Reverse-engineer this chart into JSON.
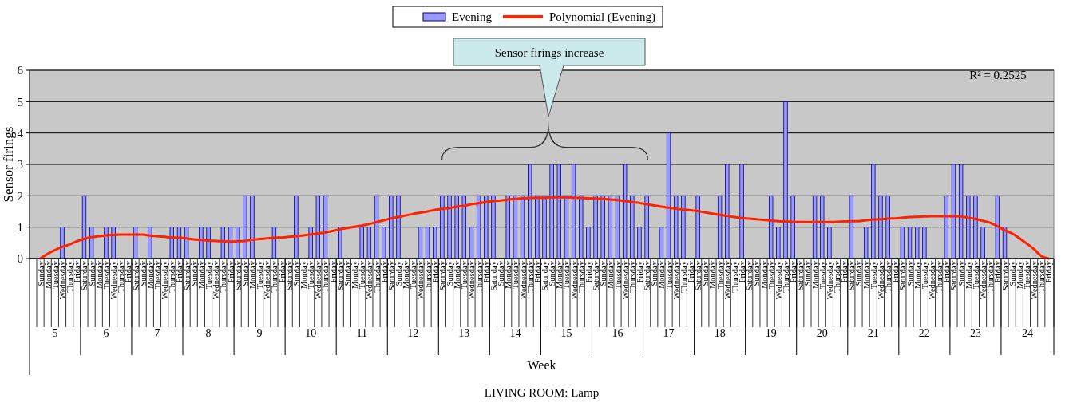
{
  "chart_data": {
    "type": "bar",
    "title": "LIVING ROOM: Lamp",
    "xlabel": "Week",
    "ylabel": "Sensor firings",
    "legend": "top",
    "grid": "y",
    "ylim": [
      0,
      6
    ],
    "yticks": [
      0,
      1,
      2,
      3,
      4,
      5,
      6
    ],
    "categories": [
      "Sunday",
      "Monday",
      "Tuesday",
      "Wednesday",
      "Thursday",
      "Friday",
      "Saturday",
      "Sunday",
      "Monday",
      "Tuesday",
      "Wednesday",
      "Thursday",
      "Friday",
      "Saturday",
      "Sunday",
      "Monday",
      "Tuesday",
      "Wednesday",
      "Thursday",
      "Friday",
      "Saturday",
      "Sunday",
      "Monday",
      "Tuesday",
      "Wednesday",
      "Thursday",
      "Friday",
      "Saturday",
      "Sunday",
      "Monday",
      "Tuesday",
      "Wednesday",
      "Thursday",
      "Friday",
      "Saturday",
      "Sunday",
      "Monday",
      "Tuesday",
      "Wednesday",
      "Thursday",
      "Friday",
      "Saturday",
      "Sunday",
      "Monday",
      "Tuesday",
      "Wednesday",
      "Thursday",
      "Friday",
      "Saturday",
      "Sunday",
      "Monday",
      "Tuesday",
      "Wednesday",
      "Thursday",
      "Friday",
      "Saturday",
      "Sunday",
      "Monday",
      "Tuesday",
      "Wednesday",
      "Thursday",
      "Friday",
      "Saturday",
      "Sunday",
      "Monday",
      "Tuesday",
      "Wednesday",
      "Thursday",
      "Friday",
      "Saturday",
      "Sunday",
      "Monday",
      "Tuesday",
      "Wednesday",
      "Thursday",
      "Friday",
      "Saturday",
      "Sunday",
      "Monday",
      "Tuesday",
      "Wednesday",
      "Thursday",
      "Friday",
      "Saturday",
      "Sunday",
      "Monday",
      "Tuesday",
      "Wednesday",
      "Thursday",
      "Friday",
      "Saturday",
      "Sunday",
      "Monday",
      "Tuesday",
      "Wednesday",
      "Thursday",
      "Friday",
      "Saturday",
      "Sunday",
      "Monday",
      "Tuesday",
      "Wednesday",
      "Thursday",
      "Friday",
      "Saturday",
      "Sunday",
      "Monday",
      "Tuesday",
      "Wednesday",
      "Thursday",
      "Friday",
      "Saturday",
      "Sunday",
      "Monday",
      "Tuesday",
      "Wednesday",
      "Thursday",
      "Friday",
      "Saturday",
      "Sunday",
      "Monday",
      "Tuesday",
      "Wednesday",
      "Thursday",
      "Friday",
      "Saturday",
      "Sunday",
      "Monday",
      "Tuesday",
      "Wednesday",
      "Thursday",
      "Friday",
      "Saturday",
      "Sunday",
      "Monday",
      "Tuesday",
      "Wednesday",
      "Thursday",
      "Friday"
    ],
    "series": [
      {
        "name": "Evening",
        "color": "#9999ff",
        "values": [
          0,
          0,
          0,
          1,
          0,
          0,
          2,
          1,
          0,
          1,
          1,
          0,
          0,
          1,
          0,
          1,
          0,
          0,
          1,
          1,
          1,
          0,
          1,
          1,
          0,
          1,
          1,
          1,
          2,
          2,
          0,
          0,
          1,
          0,
          0,
          2,
          0,
          1,
          2,
          2,
          0,
          1,
          0,
          0,
          1,
          1,
          2,
          1,
          2,
          2,
          0,
          0,
          1,
          1,
          1,
          2,
          2,
          2,
          2,
          1,
          2,
          2,
          2,
          0,
          2,
          2,
          2,
          3,
          2,
          2,
          3,
          3,
          2,
          3,
          2,
          1,
          2,
          2,
          2,
          2,
          3,
          2,
          1,
          2,
          0,
          1,
          4,
          2,
          2,
          0,
          2,
          0,
          0,
          2,
          3,
          0,
          3,
          0,
          0,
          0,
          2,
          1,
          5,
          2,
          0,
          0,
          2,
          2,
          1,
          0,
          0,
          2,
          0,
          1,
          3,
          2,
          2,
          0,
          1,
          1,
          1,
          1,
          0,
          0,
          2,
          3,
          3,
          2,
          2,
          1,
          0,
          2,
          1,
          0,
          0,
          0,
          0,
          0,
          0
        ]
      },
      {
        "name": "Polynomial (Evening)",
        "type": "line",
        "color": "#ff2200",
        "values": [
          0,
          0.15,
          0.27,
          0.37,
          0.45,
          0.55,
          0.63,
          0.68,
          0.71,
          0.74,
          0.75,
          0.76,
          0.76,
          0.76,
          0.76,
          0.73,
          0.71,
          0.69,
          0.67,
          0.66,
          0.64,
          0.61,
          0.59,
          0.57,
          0.56,
          0.55,
          0.54,
          0.55,
          0.56,
          0.6,
          0.62,
          0.64,
          0.66,
          0.67,
          0.69,
          0.71,
          0.74,
          0.77,
          0.8,
          0.83,
          0.88,
          0.93,
          0.97,
          1.01,
          1.05,
          1.1,
          1.16,
          1.22,
          1.28,
          1.33,
          1.37,
          1.42,
          1.46,
          1.5,
          1.55,
          1.58,
          1.61,
          1.65,
          1.68,
          1.73,
          1.76,
          1.8,
          1.83,
          1.85,
          1.88,
          1.9,
          1.92,
          1.93,
          1.94,
          1.94,
          1.95,
          1.95,
          1.95,
          1.94,
          1.93,
          1.92,
          1.91,
          1.9,
          1.88,
          1.86,
          1.83,
          1.8,
          1.77,
          1.73,
          1.69,
          1.65,
          1.62,
          1.59,
          1.56,
          1.54,
          1.51,
          1.47,
          1.43,
          1.39,
          1.36,
          1.32,
          1.29,
          1.27,
          1.25,
          1.23,
          1.21,
          1.19,
          1.18,
          1.17,
          1.16,
          1.16,
          1.16,
          1.16,
          1.16,
          1.17,
          1.18,
          1.19,
          1.19,
          1.22,
          1.24,
          1.25,
          1.27,
          1.28,
          1.3,
          1.32,
          1.33,
          1.34,
          1.35,
          1.35,
          1.35,
          1.35,
          1.34,
          1.3,
          1.26,
          1.2,
          1.14,
          1.03,
          0.9,
          0.8,
          0.65,
          0.48,
          0.3,
          0.08,
          0
        ]
      }
    ],
    "annotations": [
      "Sensor firings increase",
      "R² = 0.2525",
      "5",
      "6",
      "7",
      "8",
      "9",
      "10",
      "11",
      "12",
      "13",
      "14",
      "15",
      "16",
      "17",
      "18",
      "19",
      "20",
      "21",
      "22",
      "23",
      "24"
    ]
  }
}
